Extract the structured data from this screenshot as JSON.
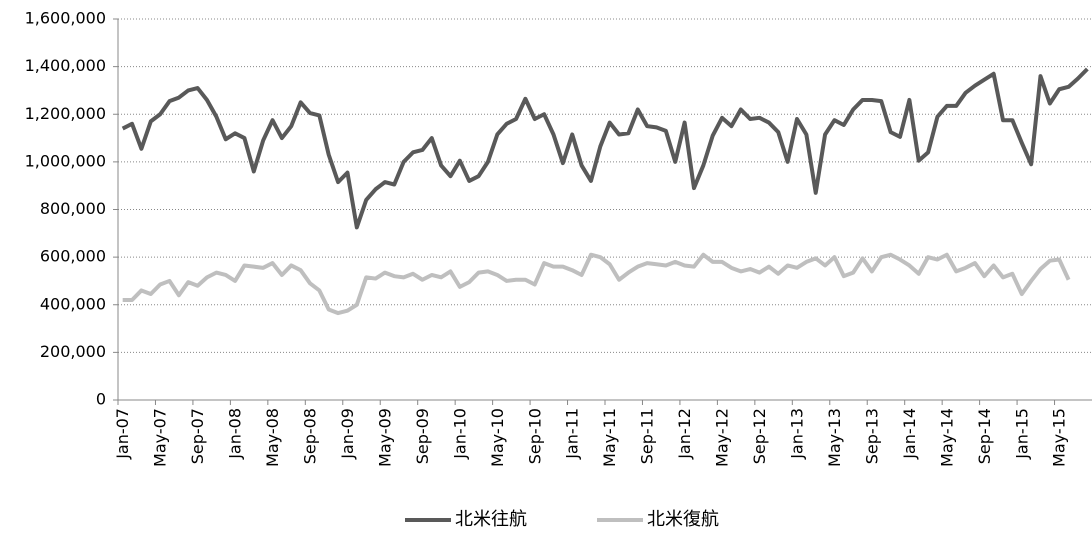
{
  "chart_data": {
    "type": "line",
    "categories": [
      "Jan-07",
      null,
      null,
      null,
      "May-07",
      null,
      null,
      null,
      "Sep-07",
      null,
      null,
      null,
      "Jan-08",
      null,
      null,
      null,
      "May-08",
      null,
      null,
      null,
      "Sep-08",
      null,
      null,
      null,
      "Jan-09",
      null,
      null,
      null,
      "May-09",
      null,
      null,
      null,
      "Sep-09",
      null,
      null,
      null,
      "Jan-10",
      null,
      null,
      null,
      "May-10",
      null,
      null,
      null,
      "Sep-10",
      null,
      null,
      null,
      "Jan-11",
      null,
      null,
      null,
      "May-11",
      null,
      null,
      null,
      "Sep-11",
      null,
      null,
      null,
      "Jan-12",
      null,
      null,
      null,
      "May-12",
      null,
      null,
      null,
      "Sep-12",
      null,
      null,
      null,
      "Jan-13",
      null,
      null,
      null,
      "May-13",
      null,
      null,
      null,
      "Sep-13",
      null,
      null,
      null,
      "Jan-14",
      null,
      null,
      null,
      "May-14",
      null,
      null,
      null,
      "Sep-14",
      null,
      null,
      null,
      "Jan-15",
      null,
      null,
      null,
      "May-15",
      null,
      null,
      null
    ],
    "series": [
      {
        "name": "北米往航",
        "color": "#595959",
        "values": [
          1140000,
          1160000,
          1055000,
          1170000,
          1200000,
          1255000,
          1270000,
          1300000,
          1310000,
          1260000,
          1190000,
          1095000,
          1120000,
          1100000,
          960000,
          1090000,
          1175000,
          1100000,
          1150000,
          1250000,
          1205000,
          1195000,
          1030000,
          915000,
          955000,
          725000,
          840000,
          885000,
          915000,
          905000,
          1000000,
          1040000,
          1050000,
          1100000,
          985000,
          940000,
          1005000,
          920000,
          940000,
          1000000,
          1115000,
          1160000,
          1180000,
          1265000,
          1180000,
          1200000,
          1115000,
          995000,
          1115000,
          985000,
          920000,
          1065000,
          1165000,
          1115000,
          1120000,
          1220000,
          1150000,
          1145000,
          1130000,
          1000000,
          1165000,
          890000,
          985000,
          1110000,
          1185000,
          1150000,
          1220000,
          1180000,
          1185000,
          1165000,
          1125000,
          1000000,
          1180000,
          1115000,
          870000,
          1115000,
          1175000,
          1155000,
          1220000,
          1260000,
          1260000,
          1255000,
          1125000,
          1105000,
          1260000,
          1005000,
          1040000,
          1190000,
          1235000,
          1235000,
          1290000,
          1320000,
          1345000,
          1370000,
          1175000,
          1175000,
          1080000,
          990000,
          1360000,
          1245000,
          1305000,
          1315000,
          1350000,
          1390000
        ]
      },
      {
        "name": "北米復航",
        "color": "#bfbfbf",
        "values": [
          420000,
          420000,
          460000,
          445000,
          485000,
          500000,
          440000,
          495000,
          480000,
          515000,
          535000,
          525000,
          500000,
          565000,
          560000,
          555000,
          575000,
          525000,
          565000,
          545000,
          490000,
          460000,
          380000,
          365000,
          375000,
          400000,
          515000,
          510000,
          535000,
          520000,
          515000,
          530000,
          505000,
          525000,
          515000,
          540000,
          475000,
          495000,
          535000,
          540000,
          525000,
          500000,
          505000,
          505000,
          485000,
          575000,
          560000,
          560000,
          545000,
          525000,
          610000,
          600000,
          570000,
          505000,
          535000,
          560000,
          575000,
          570000,
          565000,
          580000,
          565000,
          560000,
          610000,
          580000,
          580000,
          555000,
          540000,
          550000,
          535000,
          560000,
          530000,
          565000,
          555000,
          580000,
          595000,
          565000,
          600000,
          520000,
          535000,
          595000,
          540000,
          600000,
          610000,
          590000,
          565000,
          530000,
          600000,
          590000,
          610000,
          540000,
          555000,
          575000,
          520000,
          565000,
          515000,
          530000,
          445000,
          500000,
          550000,
          585000,
          590000,
          505000,
          null,
          null
        ]
      }
    ],
    "ylim": [
      0,
      1600000
    ],
    "yticks": [
      0,
      {
        "value": 200000,
        "label": "200,000"
      },
      {
        "value": 400000,
        "label": "400,000"
      },
      {
        "value": 600000,
        "label": "600,000"
      },
      {
        "value": 800000,
        "label": "800,000"
      },
      {
        "value": 1000000,
        "label": "1,000,000"
      },
      {
        "value": 1200000,
        "label": "1,200,000"
      },
      {
        "value": 1400000,
        "label": "1,400,000"
      },
      {
        "value": 1600000,
        "label": "1,600,000"
      }
    ],
    "grid": true,
    "legend": "bottom"
  }
}
